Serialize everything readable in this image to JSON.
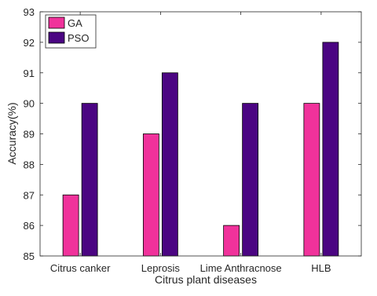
{
  "chart_data": {
    "type": "bar",
    "title": "",
    "xlabel": "Citrus plant diseases",
    "ylabel": "Accuracy(%)",
    "categories": [
      "Citrus canker",
      "Leprosis",
      "Lime Anthracnose",
      "HLB"
    ],
    "series": [
      {
        "name": "GA",
        "values": [
          87,
          89,
          86,
          90
        ],
        "color": "#f0329b"
      },
      {
        "name": "PSO",
        "values": [
          90,
          91,
          90,
          92
        ],
        "color": "#4b0582"
      }
    ],
    "ylim": [
      85,
      93
    ],
    "yticks": [
      85,
      86,
      87,
      88,
      89,
      90,
      91,
      92,
      93
    ],
    "grid": false,
    "legend_position": "top-left"
  }
}
